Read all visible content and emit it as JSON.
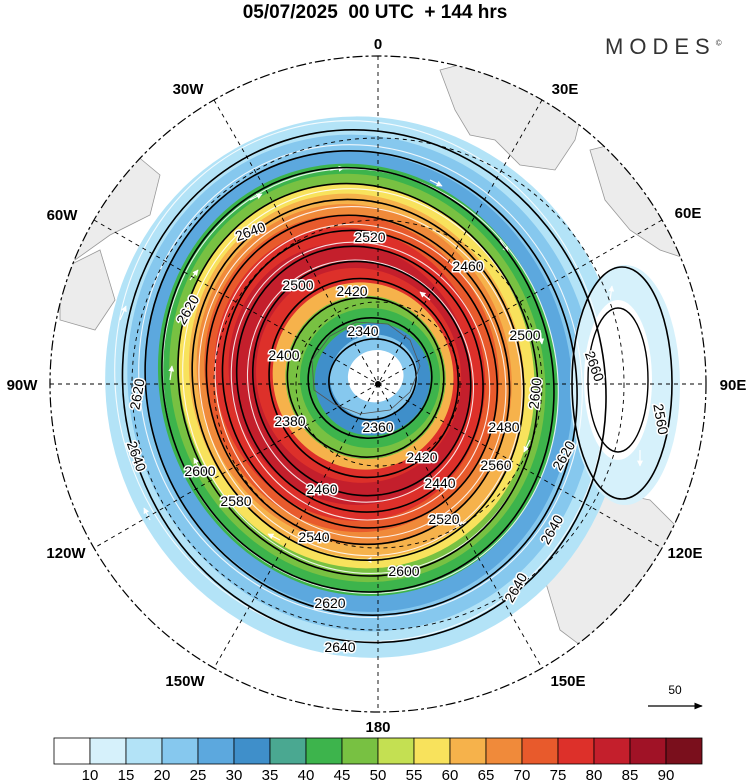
{
  "title": "05/07/2025  00 UTC  + 144 hrs",
  "brand": "MODES",
  "brand_mark": "©",
  "longitude_labels": [
    "0",
    "30E",
    "60E",
    "90E",
    "120E",
    "150E",
    "180",
    "150W",
    "120W",
    "90W",
    "60W",
    "30W"
  ],
  "contour_labels": [
    "2340",
    "2360",
    "2380",
    "2400",
    "2420",
    "2440",
    "2460",
    "2480",
    "2500",
    "2520",
    "2540",
    "2560",
    "2580",
    "2600",
    "2620",
    "2640",
    "2660"
  ],
  "vector_reference": "50",
  "colorbar": {
    "labels": [
      "10",
      "15",
      "20",
      "25",
      "30",
      "35",
      "40",
      "45",
      "50",
      "55",
      "60",
      "65",
      "70",
      "75",
      "80",
      "85",
      "90"
    ],
    "colors": [
      "#ffffff",
      "#d6f1fb",
      "#b3e3f7",
      "#86c8ee",
      "#5ca8de",
      "#3f8fca",
      "#4aa891",
      "#3db44c",
      "#78c142",
      "#c4e052",
      "#f8e25c",
      "#f6b24b",
      "#f08a3a",
      "#e85a2c",
      "#dd302a",
      "#c41f2c",
      "#a01226",
      "#7a0f1c"
    ]
  }
}
